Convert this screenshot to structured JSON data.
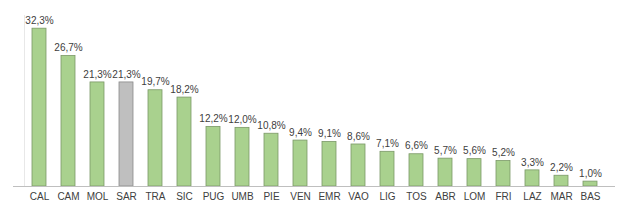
{
  "chart_data": {
    "type": "bar",
    "categories": [
      "CAL",
      "CAM",
      "MOL",
      "SAR",
      "TRA",
      "SIC",
      "PUG",
      "UMB",
      "PIE",
      "VEN",
      "EMR",
      "VAO",
      "LIG",
      "TOS",
      "ABR",
      "LOM",
      "FRI",
      "LAZ",
      "MAR",
      "BAS"
    ],
    "values": [
      32.3,
      26.7,
      21.3,
      21.3,
      19.7,
      18.2,
      12.2,
      12.0,
      10.8,
      9.4,
      9.1,
      8.6,
      7.1,
      6.6,
      5.7,
      5.6,
      5.2,
      3.3,
      2.2,
      1.0
    ],
    "value_labels": [
      "32,3%",
      "26,7%",
      "21,3%",
      "21,3%",
      "19,7%",
      "18,2%",
      "12,2%",
      "12,0%",
      "10,8%",
      "9,4%",
      "9,1%",
      "8,6%",
      "7,1%",
      "6,6%",
      "5,7%",
      "5,6%",
      "5,2%",
      "3,3%",
      "2,2%",
      "1,0%"
    ],
    "colors": [
      "#a9d18e",
      "#a9d18e",
      "#a9d18e",
      "#bfbfbf",
      "#a9d18e",
      "#a9d18e",
      "#a9d18e",
      "#a9d18e",
      "#a9d18e",
      "#a9d18e",
      "#a9d18e",
      "#a9d18e",
      "#a9d18e",
      "#a9d18e",
      "#a9d18e",
      "#a9d18e",
      "#a9d18e",
      "#a9d18e",
      "#a9d18e",
      "#a9d18e"
    ],
    "ylim": [
      0,
      35
    ],
    "yticks": [],
    "grid": false,
    "data_labels": true,
    "tick_labels": "x"
  }
}
